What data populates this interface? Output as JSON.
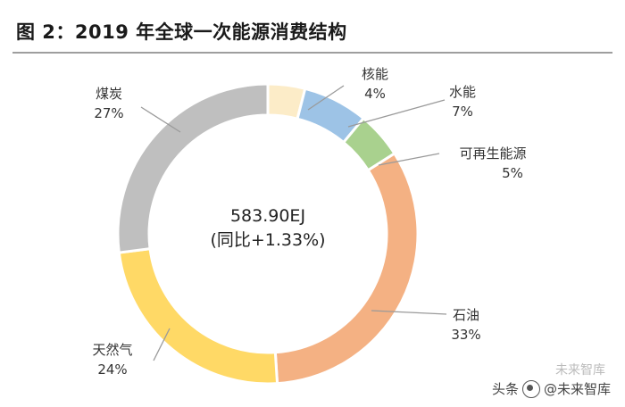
{
  "figure_title": "图 2：2019 年全球一次能源消费结构",
  "watermark": {
    "source": "头条",
    "account": "@未来智库",
    "ghost_text": "未来智库"
  },
  "chart_data": {
    "type": "pie",
    "style": "donut",
    "title": "图 2：2019 年全球一次能源消费结构",
    "center_label": {
      "total": "583.90EJ",
      "growth": "(同比+1.33%)"
    },
    "categories": [
      "核能",
      "水能",
      "可再生能源",
      "石油",
      "天然气",
      "煤炭"
    ],
    "values": [
      4,
      7,
      5,
      33,
      24,
      27
    ],
    "value_labels": [
      "4%",
      "7%",
      "5%",
      "33%",
      "24%",
      "27%"
    ],
    "colors": [
      "#FCECC8",
      "#9DC3E6",
      "#A9D18E",
      "#F4B183",
      "#FFD966",
      "#BFBFBF"
    ]
  }
}
